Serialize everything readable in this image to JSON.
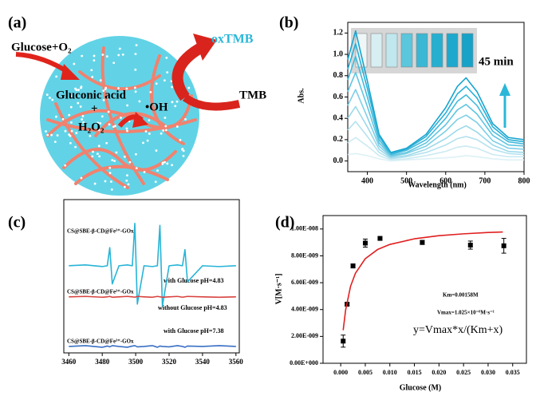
{
  "illustration": {
    "panel_label": "(a)",
    "glucose": "Glucose+O₂",
    "oxtmb": "oxTMB",
    "tmb": "TMB",
    "gluconic": "Gluconic acid",
    "plus": "+",
    "h2o2": "H₂O₂",
    "oh": "•OH"
  },
  "chart_data": [
    {
      "type": "line",
      "panel_label": "(b)",
      "xlabel": "Wavelength (nm)",
      "ylabel": "Abs.",
      "annotations": [
        "45 min"
      ],
      "x": [
        350,
        370,
        400,
        430,
        460,
        500,
        550,
        600,
        630,
        652,
        680,
        720,
        760,
        800
      ],
      "xlim": [
        350,
        800
      ],
      "xticks": [
        400,
        500,
        600,
        700,
        800
      ],
      "ylim": [
        -0.1,
        1.3
      ],
      "yticks": [
        {
          "value": 0,
          "label": "0.0"
        },
        0.2,
        0.4,
        0.6,
        0.8,
        {
          "value": 1,
          "label": "1.0"
        },
        1.2
      ],
      "series": [
        {
          "color": "#18a4cf",
          "values": [
            0.95,
            1.22,
            0.75,
            0.25,
            0.08,
            0.12,
            0.25,
            0.5,
            0.7,
            0.78,
            0.65,
            0.35,
            0.22,
            0.2
          ]
        },
        {
          "color": "#2aafd6",
          "values": [
            0.86,
            1.1,
            0.68,
            0.23,
            0.07,
            0.11,
            0.23,
            0.45,
            0.63,
            0.7,
            0.59,
            0.32,
            0.2,
            0.18
          ]
        },
        {
          "color": "#43badc",
          "values": [
            0.76,
            0.98,
            0.6,
            0.2,
            0.06,
            0.1,
            0.2,
            0.4,
            0.56,
            0.62,
            0.52,
            0.28,
            0.18,
            0.16
          ]
        },
        {
          "color": "#60c5e1",
          "values": [
            0.65,
            0.83,
            0.51,
            0.17,
            0.05,
            0.08,
            0.17,
            0.34,
            0.48,
            0.53,
            0.44,
            0.24,
            0.15,
            0.14
          ]
        },
        {
          "color": "#7ecfe6",
          "values": [
            0.52,
            0.67,
            0.41,
            0.14,
            0.04,
            0.07,
            0.14,
            0.28,
            0.39,
            0.43,
            0.36,
            0.19,
            0.12,
            0.11
          ]
        },
        {
          "color": "#9ad9ea",
          "values": [
            0.4,
            0.51,
            0.32,
            0.11,
            0.03,
            0.05,
            0.11,
            0.21,
            0.29,
            0.33,
            0.27,
            0.15,
            0.09,
            0.08
          ]
        },
        {
          "color": "#b4e2ee",
          "values": [
            0.29,
            0.37,
            0.23,
            0.08,
            0.02,
            0.04,
            0.08,
            0.15,
            0.21,
            0.23,
            0.2,
            0.11,
            0.07,
            0.06
          ]
        },
        {
          "color": "#cbeaf2",
          "values": [
            0.17,
            0.22,
            0.14,
            0.05,
            0.01,
            0.02,
            0.05,
            0.09,
            0.13,
            0.14,
            0.12,
            0.06,
            0.04,
            0.04
          ]
        },
        {
          "color": "#ddf1f6",
          "values": [
            0.06,
            0.07,
            0.05,
            0.02,
            0,
            0.01,
            0.02,
            0.03,
            0.04,
            0.05,
            0.04,
            0.02,
            0.01,
            0.01
          ]
        }
      ]
    },
    {
      "type": "line",
      "panel_label": "(c)",
      "annotations": [
        "CS@SBE-β-CD@Fe³⁺-GOx",
        "with Glucose  pH=4.83",
        "CS@SBE-β-CD@Fe³⁺-GOx",
        "without Glucose pH=4.83",
        "CS@SBE-β-CD@Fe³⁺-GOx",
        "with Glucose  pH=7.38"
      ],
      "x": [
        3460,
        3470,
        3480,
        3483,
        3484.5,
        3486,
        3490,
        3495,
        3498,
        3499.5,
        3501,
        3505,
        3510,
        3513,
        3514.5,
        3516,
        3520,
        3525,
        3528,
        3529.5,
        3531,
        3540,
        3550,
        3560
      ],
      "xlim": [
        3457,
        3562
      ],
      "xticks": [
        3460,
        3480,
        3500,
        3520,
        3540,
        3560
      ],
      "ylim": [
        -0.16,
        3.64
      ],
      "series": [
        {
          "color": "#27b4d6",
          "values": [
            2,
            2.02,
            1.98,
            2,
            2.45,
            1.55,
            2,
            2.02,
            2,
            3.05,
            1.05,
            2,
            1.98,
            2,
            3,
            1,
            2,
            2.02,
            2,
            2.4,
            1.6,
            2,
            1.98,
            2
          ]
        },
        {
          "color": "#d8433f",
          "values": [
            1.23,
            1.24,
            1.22,
            1.23,
            1.24,
            1.22,
            1.23,
            1.24,
            1.23,
            1.22,
            1.24,
            1.23,
            1.22,
            1.24,
            1.23,
            1.22,
            1.23,
            1.24,
            1.22,
            1.23,
            1.24,
            1.23,
            1.22,
            1.23
          ]
        },
        {
          "color": "#3a6fc4",
          "values": [
            0,
            0.02,
            -0.02,
            0.01,
            -0.01,
            0.02,
            0,
            -0.02,
            0.01,
            0.02,
            -0.01,
            0,
            0.02,
            -0.02,
            0.01,
            0,
            -0.01,
            0.02,
            0,
            -0.02,
            0.01,
            0,
            0.02,
            0
          ]
        }
      ]
    },
    {
      "type": "scatter",
      "panel_label": "(d)",
      "xlabel": "Glucose (M)",
      "ylabel": "V[M·s⁻¹]",
      "annotations": [
        "Km=0.00158M",
        "Vmax=1.025×10⁻⁸M·s⁻¹",
        "y=Vmax*x/(Km+x)"
      ],
      "xlim": [
        -0.0036,
        0.0378
      ],
      "xticks": [
        {
          "value": 0,
          "label": "0.000"
        },
        0.005,
        {
          "value": 0.01,
          "label": "0.010"
        },
        0.015,
        {
          "value": 0.02,
          "label": "0.020"
        },
        0.025,
        {
          "value": 0.03,
          "label": "0.030"
        },
        0.035
      ],
      "ylim": [
        0,
        1.1e-08
      ],
      "yticks": [
        {
          "value": 0,
          "label": "0.00E+000"
        },
        {
          "value": 2e-09,
          "label": "2.00E-009"
        },
        {
          "value": 4e-09,
          "label": "4.00E-009"
        },
        {
          "value": 6e-09,
          "label": "6.00E-009"
        },
        {
          "value": 8e-09,
          "label": "8.00E-009"
        },
        {
          "value": 1e-08,
          "label": "1.00E-008"
        }
      ],
      "series": [
        {
          "color": "#000000",
          "x": [
            0.0005,
            0.0013,
            0.0025,
            0.005,
            0.008,
            0.0166,
            0.0264,
            0.0332
          ],
          "values": [
            1.65e-09,
            4.4e-09,
            7.25e-09,
            8.95e-09,
            9.3e-09,
            9e-09,
            8.8e-09,
            8.75e-09
          ],
          "errors": [
            4.5e-10,
            1e-10,
            1.5e-10,
            3e-10,
            1e-10,
            1.5e-10,
            3e-10,
            5.5e-10
          ]
        },
        {
          "color": "#e02020",
          "style": "line",
          "x": [
            0.0005,
            0.001,
            0.002,
            0.003,
            0.005,
            0.0075,
            0.01,
            0.015,
            0.02,
            0.025,
            0.03,
            0.033
          ],
          "values": [
            2.46e-09,
            3.97e-09,
            5.73e-09,
            6.71e-09,
            7.79e-09,
            8.47e-09,
            8.85e-09,
            9.27e-09,
            9.5e-09,
            9.64e-09,
            9.74e-09,
            9.78e-09
          ]
        }
      ]
    }
  ]
}
